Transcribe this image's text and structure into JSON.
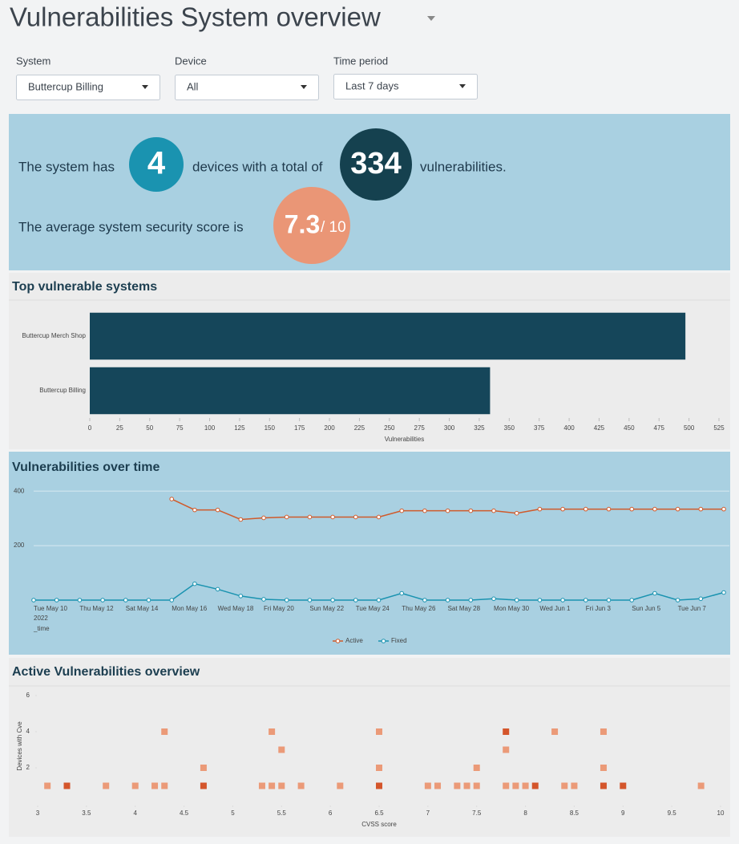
{
  "header": {
    "title": "Vulnerabilities System overview"
  },
  "filters": [
    {
      "label": "System",
      "value": "Buttercup Billing"
    },
    {
      "label": "Device",
      "value": "All"
    },
    {
      "label": "Time period",
      "value": "Last 7 days"
    }
  ],
  "summary": {
    "text1": "The system has",
    "devices": 4,
    "text2": "devices with a total of",
    "vulnerabilities": 334,
    "text3": "vulnerabilities.",
    "text4": "The average system security score is",
    "score": 7.3,
    "score_suffix": "/ 10"
  },
  "chart_data": [
    {
      "type": "hbar",
      "title": "Top vulnerable systems",
      "categories": [
        "Buttercup Merch Shop",
        "Buttercup Billing"
      ],
      "values": [
        497,
        334
      ],
      "color": "#15465a",
      "xlabel": "Vulnerabilities",
      "xlim": [
        0,
        525
      ],
      "xticks": [
        0,
        25,
        50,
        75,
        100,
        125,
        150,
        175,
        200,
        225,
        250,
        275,
        300,
        325,
        350,
        375,
        400,
        425,
        450,
        475,
        500,
        525
      ]
    },
    {
      "type": "line",
      "title": "Vulnerabilities over time",
      "categories": [
        "Tue May 10",
        null,
        "Thu May 12",
        null,
        "Sat May 14",
        null,
        "Mon May 16",
        null,
        "Wed May 18",
        null,
        "Fri May 20",
        null,
        "Sun May 22",
        null,
        "Tue May 24",
        null,
        "Thu May 26",
        null,
        "Sat May 28",
        null,
        "Mon May 30",
        null,
        "Wed Jun 1",
        null,
        "Fri Jun 3",
        null,
        "Sun Jun 5",
        null,
        "Tue Jun 7",
        null,
        null
      ],
      "year": "2022",
      "xlabel": "_time",
      "ylim": [
        0,
        430
      ],
      "yticks": [
        200,
        400
      ],
      "grid": true,
      "series": [
        {
          "name": "Active",
          "color": "#d05a2b",
          "values": [
            null,
            null,
            null,
            null,
            null,
            null,
            371,
            331,
            331,
            296,
            302,
            305,
            305,
            305,
            305,
            305,
            328,
            328,
            328,
            328,
            328,
            319,
            334,
            334,
            334,
            334,
            334,
            334,
            334,
            334,
            334
          ]
        },
        {
          "name": "Fixed",
          "color": "#1a93b0",
          "values": [
            0,
            0,
            0,
            0,
            0,
            0,
            0,
            60,
            40,
            15,
            3,
            0,
            0,
            0,
            0,
            0,
            25,
            0,
            0,
            0,
            5,
            0,
            0,
            0,
            0,
            0,
            0,
            25,
            0,
            5,
            28
          ]
        }
      ]
    },
    {
      "type": "scatter",
      "title": "Active Vulnerabilities overview",
      "xlabel": "CVSS score",
      "ylabel": "Devices with Cve",
      "xlim": [
        3,
        10
      ],
      "ylim": [
        0,
        6
      ],
      "xticks": [
        3,
        3.5,
        4,
        4.5,
        5,
        5.5,
        6,
        6.5,
        7,
        7.5,
        8,
        8.5,
        9,
        9.5,
        10
      ],
      "yticks": [
        2,
        4,
        6
      ],
      "series": [
        {
          "color": "#eb9a78",
          "x": [
            3.1,
            3.7,
            4.0,
            4.2,
            4.3,
            5.3,
            5.4,
            5.5,
            5.7,
            6.1,
            7.0,
            7.1,
            7.3,
            7.4,
            7.5,
            7.8,
            7.9,
            8.0,
            8.4,
            8.5,
            9.8,
            4.7,
            6.5,
            7.5,
            8.8,
            5.5,
            7.8,
            4.3,
            5.4,
            6.5,
            8.3,
            8.8
          ],
          "values": [
            1,
            1,
            1,
            1,
            1,
            1,
            1,
            1,
            1,
            1,
            1,
            1,
            1,
            1,
            1,
            1,
            1,
            1,
            1,
            1,
            1,
            2,
            2,
            2,
            2,
            3,
            3,
            4,
            4,
            4,
            4,
            4
          ]
        },
        {
          "color": "#d4552b",
          "x": [
            3.3,
            4.7,
            6.5,
            8.1,
            8.8,
            9.0,
            7.8
          ],
          "values": [
            1,
            1,
            1,
            1,
            1,
            1,
            4
          ]
        }
      ]
    }
  ]
}
